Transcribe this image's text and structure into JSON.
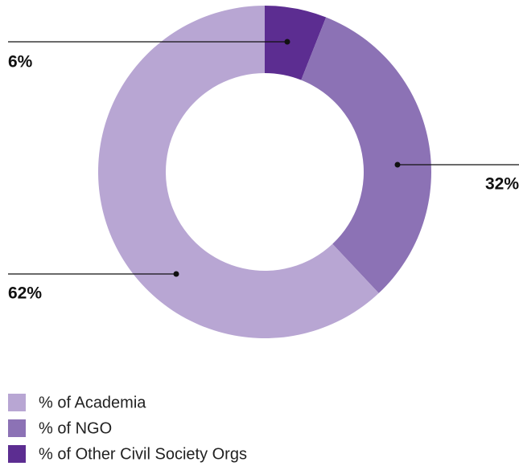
{
  "chart_data": {
    "type": "donut",
    "categories": [
      "% of Academia",
      "% of NGO",
      "% of Other Civil Society Orgs"
    ],
    "values": [
      62,
      32,
      6
    ],
    "value_labels": [
      "62%",
      "32%",
      "6%"
    ],
    "colors": [
      "#b8a6d3",
      "#8c72b5",
      "#5c2d91"
    ],
    "legend": "bottom-left"
  }
}
